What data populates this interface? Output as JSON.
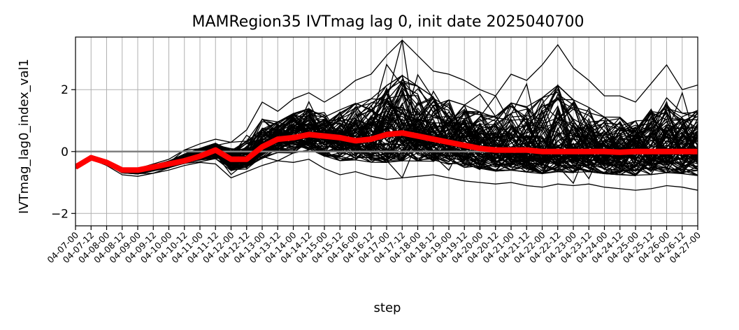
{
  "chart_data": {
    "type": "line",
    "title": "MAMRegion35 IVTmag lag 0, init date 2025040700",
    "xlabel": "step",
    "ylabel": "IVTmag_lag0_index_val1",
    "x_ticks": [
      "04-07-00",
      "04-07-12",
      "04-08-00",
      "04-08-12",
      "04-09-00",
      "04-09-12",
      "04-10-00",
      "04-10-12",
      "04-11-00",
      "04-11-12",
      "04-12-00",
      "04-12-12",
      "04-13-00",
      "04-13-12",
      "04-14-00",
      "04-14-12",
      "04-15-00",
      "04-15-12",
      "04-16-00",
      "04-16-12",
      "04-17-00",
      "04-17-12",
      "04-18-00",
      "04-18-12",
      "04-19-00",
      "04-19-12",
      "04-20-00",
      "04-20-12",
      "04-21-00",
      "04-21-12",
      "04-22-00",
      "04-22-12",
      "04-23-00",
      "04-23-12",
      "04-24-00",
      "04-24-12",
      "04-25-00",
      "04-25-12",
      "04-26-00",
      "04-26-12",
      "04-27-00"
    ],
    "y_ticks": [
      -2,
      0,
      2
    ],
    "ylim": [
      -2.4,
      3.7
    ],
    "grid": true,
    "reference_line": {
      "y": 0,
      "color": "#808080"
    },
    "colors": {
      "members": "#000000",
      "mean": "#ff0000",
      "grid": "#b0b0b0"
    },
    "ensemble_members": 100,
    "ensemble_envelope": {
      "low": [
        -0.55,
        -0.25,
        -0.45,
        -0.75,
        -0.8,
        -0.7,
        -0.6,
        -0.45,
        -0.35,
        -0.4,
        -0.85,
        -0.65,
        -0.45,
        -0.3,
        -0.35,
        -0.25,
        -0.55,
        -0.75,
        -0.65,
        -0.8,
        -0.9,
        -0.85,
        -0.8,
        -0.75,
        -0.85,
        -0.95,
        -1.0,
        -1.05,
        -1.0,
        -1.1,
        -1.15,
        -1.05,
        -1.1,
        -1.05,
        -1.15,
        -1.2,
        -1.25,
        -1.2,
        -1.1,
        -1.15,
        -1.25
      ],
      "high": [
        -0.45,
        -0.15,
        -0.35,
        -0.6,
        -0.55,
        -0.4,
        -0.25,
        0.05,
        0.25,
        0.4,
        0.3,
        0.7,
        1.6,
        1.3,
        1.7,
        1.9,
        1.6,
        1.9,
        2.3,
        2.5,
        3.1,
        3.6,
        3.1,
        2.6,
        2.5,
        2.3,
        2.0,
        1.8,
        2.5,
        2.3,
        2.8,
        3.45,
        2.7,
        2.3,
        1.8,
        1.8,
        1.6,
        2.2,
        2.8,
        2.0,
        2.15
      ]
    },
    "series": [
      {
        "role": "ensemble-mean",
        "values": [
          -0.5,
          -0.2,
          -0.35,
          -0.6,
          -0.6,
          -0.5,
          -0.4,
          -0.3,
          -0.15,
          0.05,
          -0.25,
          -0.25,
          0.15,
          0.4,
          0.45,
          0.55,
          0.5,
          0.45,
          0.35,
          0.4,
          0.55,
          0.6,
          0.5,
          0.4,
          0.3,
          0.2,
          0.1,
          0.05,
          0.05,
          0.05,
          0.0,
          0.0,
          0.0,
          0.0,
          0.0,
          -0.02,
          0.0,
          0.0,
          0.0,
          0.0,
          0.0
        ]
      }
    ]
  }
}
